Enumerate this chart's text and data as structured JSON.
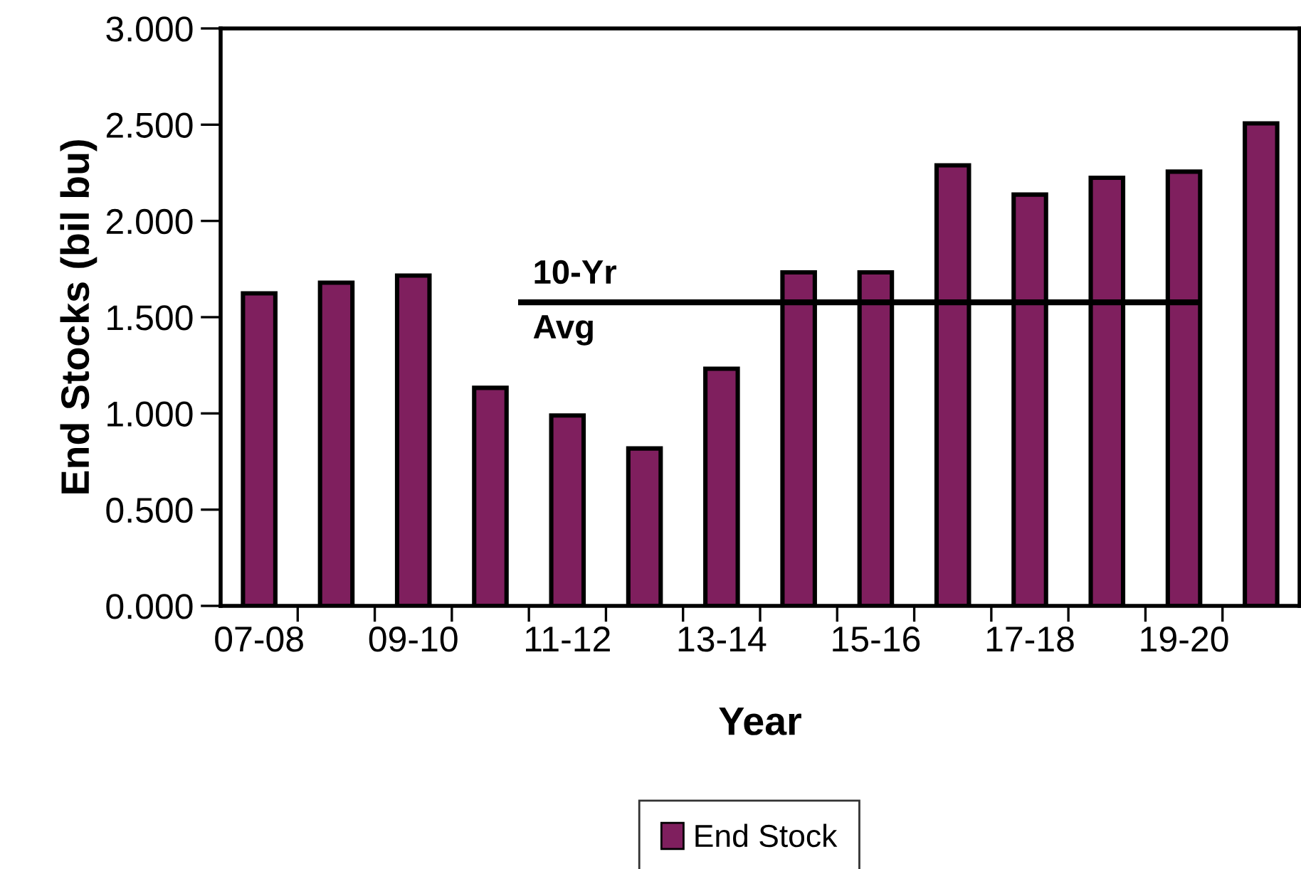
{
  "chart_data": {
    "type": "bar",
    "xlabel": "Year",
    "ylabel": "End Stocks (bil bu)",
    "categories": [
      "07-08",
      null,
      "09-10",
      null,
      "11-12",
      null,
      "13-14",
      null,
      "15-16",
      null,
      "17-18",
      null,
      "19-20",
      null
    ],
    "series": [
      {
        "name": "End Stock",
        "color": "#7f1f5e",
        "values": [
          1.624,
          1.679,
          1.716,
          1.133,
          0.989,
          0.818,
          1.232,
          1.733,
          1.733,
          2.289,
          2.137,
          2.224,
          2.256,
          2.507
        ]
      }
    ],
    "ylim": [
      0,
      3
    ],
    "yticks": [
      {
        "value": 0,
        "label": "0.000"
      },
      {
        "value": 0.5,
        "label": "0.500"
      },
      {
        "value": 1,
        "label": "1.000"
      },
      {
        "value": 1.5,
        "label": "1.500"
      },
      {
        "value": 2,
        "label": "2.000"
      },
      {
        "value": 2.5,
        "label": "2.500"
      },
      {
        "value": 3,
        "label": "3.000"
      }
    ],
    "ref_lines": [
      {
        "axis": "y",
        "value": 1.577,
        "label": "10-Yr\nAvg",
        "color": "#000000"
      }
    ],
    "grid": false,
    "legend": "bottom"
  }
}
